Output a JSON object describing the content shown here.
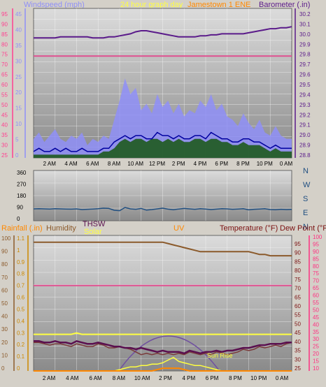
{
  "header": {
    "left_title": "Windspeed (mph)",
    "center_title": "24 hour graph day",
    "station_name": "Jamestown 1 ENE",
    "right_title": "Barometer (.in)"
  },
  "colors": {
    "background": "#d4d0c8",
    "plot_bg_light": "#dcdcdc",
    "plot_bg_dark": "#8a8a8a",
    "grid": "#ffffff",
    "wind_speed": "#8f8ff8",
    "wind_avg": "#0000a0",
    "wind_gust_area": "#1e5a1e",
    "barometer": "#5a1a8a",
    "temperature": "#e05090",
    "direction": "#1f4e80",
    "humidity": "#8b5a2b",
    "humidity_low": "#7a3a3a",
    "thsw": "#5a0f4f",
    "solar": "#ffff40",
    "uv": "#ff8800",
    "rain": "#ff8800",
    "solar_curve": "#7050a0",
    "wind_axis_text": "#ff4090",
    "baro_axis_text": "#5a1a8a",
    "humidity_axis_text": "#cc8800",
    "temp_axis_text": "#ff3080"
  },
  "chart_data": [
    {
      "id": "wind_barometer",
      "type": "line",
      "title": "24 hour graph day",
      "x_labels": [
        "2 AM",
        "4 AM",
        "6 AM",
        "8 AM",
        "10 AM",
        "12 PM",
        "2 PM",
        "4 PM",
        "6 PM",
        "8 PM",
        "10 PM",
        "0 AM"
      ],
      "left_axis": {
        "label": "Windspeed (mph)",
        "outer_ticks": [
          95,
          90,
          85,
          80,
          75,
          70,
          65,
          60,
          55,
          50,
          45,
          40,
          35,
          30,
          25
        ],
        "inner_ticks": [
          45,
          40,
          35,
          30,
          25,
          20,
          15,
          10,
          5,
          0
        ],
        "ylim": [
          0,
          47
        ]
      },
      "right_axis": {
        "label": "Barometer (.in)",
        "ticks": [
          30.2,
          30.1,
          30.0,
          29.9,
          29.8,
          29.7,
          29.6,
          29.5,
          29.4,
          29.3,
          29.2,
          29.1,
          29.0,
          28.9,
          28.8
        ],
        "ylim": [
          28.78,
          30.25
        ]
      },
      "series": [
        {
          "name": "Barometer",
          "axis": "right",
          "values": [
            29.96,
            29.96,
            29.96,
            29.96,
            29.96,
            29.97,
            29.97,
            29.97,
            29.97,
            29.97,
            29.97,
            29.96,
            29.96,
            29.96,
            29.97,
            29.97,
            29.98,
            29.99,
            30.0,
            30.02,
            30.03,
            30.03,
            30.02,
            30.01,
            30.0,
            29.99,
            29.98,
            29.97,
            29.97,
            29.97,
            29.97,
            29.98,
            29.98,
            29.99,
            29.99,
            30.0,
            30.0,
            30.0,
            30.0,
            30.0,
            30.01,
            30.02,
            30.03,
            30.04,
            30.05,
            30.05,
            30.06,
            30.06,
            30.07
          ]
        },
        {
          "name": "Temperature",
          "axis": "left",
          "values": [
            32,
            32,
            32,
            32,
            32,
            32,
            32,
            32,
            32,
            32,
            32,
            32,
            32,
            32,
            32,
            32,
            32,
            32,
            32,
            32,
            32,
            32,
            32,
            32,
            32,
            32,
            32,
            32,
            32,
            32,
            32,
            32,
            32,
            32,
            32,
            32,
            32,
            32,
            32,
            32,
            32,
            32,
            32,
            32,
            32,
            32,
            32,
            32,
            32
          ]
        },
        {
          "name": "Wind Speed",
          "values": [
            6,
            8,
            5,
            7,
            9,
            6,
            5,
            7,
            6,
            8,
            4,
            6,
            5,
            7,
            6,
            12,
            18,
            25,
            20,
            22,
            15,
            17,
            14,
            20,
            16,
            18,
            14,
            17,
            13,
            15,
            14,
            18,
            16,
            20,
            15,
            17,
            13,
            12,
            10,
            14,
            11,
            9,
            12,
            8,
            7,
            10,
            7,
            6,
            6
          ]
        },
        {
          "name": "Wind Avg",
          "values": [
            2,
            3,
            2,
            2,
            3,
            2,
            3,
            2,
            2,
            3,
            2,
            2,
            2,
            3,
            3,
            5,
            6,
            7,
            6,
            7,
            7,
            6,
            6,
            8,
            7,
            7,
            6,
            7,
            6,
            6,
            7,
            7,
            6,
            8,
            7,
            6,
            6,
            5,
            5,
            6,
            6,
            5,
            5,
            4,
            3,
            4,
            3,
            3,
            3
          ]
        },
        {
          "name": "Wind Gust",
          "values": [
            1,
            1,
            1,
            1,
            1,
            1,
            1,
            1,
            1,
            1,
            1,
            1,
            1,
            2,
            2,
            3,
            5,
            6,
            5,
            6,
            6,
            5,
            6,
            6,
            5,
            6,
            5,
            6,
            5,
            5,
            6,
            6,
            5,
            6,
            6,
            5,
            5,
            4,
            4,
            5,
            4,
            4,
            4,
            3,
            2,
            3,
            2,
            2,
            2
          ]
        }
      ]
    },
    {
      "id": "wind_direction",
      "type": "line",
      "y_ticks": [
        360,
        270,
        180,
        90,
        0
      ],
      "compass_labels": [
        "N",
        "W",
        "S",
        "E",
        "N"
      ],
      "ylim": [
        0,
        360
      ],
      "series": [
        {
          "name": "Wind Direction",
          "values": [
            85,
            86,
            85,
            84,
            86,
            85,
            84,
            83,
            85,
            80,
            82,
            84,
            86,
            90,
            88,
            75,
            72,
            95,
            85,
            82,
            88,
            76,
            80,
            85,
            90,
            83,
            79,
            84,
            88,
            85,
            82,
            86,
            84,
            80,
            83,
            86,
            85,
            82,
            84,
            86,
            78,
            82,
            84,
            86,
            80,
            79,
            82,
            80,
            81
          ]
        }
      ]
    },
    {
      "id": "thsw_humidity_temp",
      "type": "line",
      "x_labels": [
        "2 AM",
        "4 AM",
        "6 AM",
        "8 AM",
        "10 AM",
        "2 PM",
        "4 PM",
        "6 PM",
        "8 PM",
        "10 PM",
        "0 AM"
      ],
      "labels": {
        "rainfall": "Rainfall (.in)",
        "humidity": "Humidity",
        "thsw": "THSW",
        "solar": "Solar",
        "uv": "UV",
        "temperature": "Temperature (°F)",
        "dew_point": "Dew Point (°F)"
      },
      "solar_annotation": "Sun Rise",
      "rain_ticks": [
        100,
        90,
        80,
        70,
        60,
        50,
        40,
        30,
        20,
        10,
        0
      ],
      "humidity_ticks": [
        1.1,
        1.0,
        0.9,
        0.8,
        0.7,
        0.6,
        0.5,
        0.4,
        0.3,
        0.2,
        0.1,
        0
      ],
      "temp_ticks_outer": [
        100,
        95,
        90,
        85,
        80,
        75,
        70,
        65,
        60,
        55,
        50,
        45,
        40,
        35,
        30,
        25,
        20,
        15,
        10
      ],
      "temp_ticks_inner": [
        95,
        90,
        85,
        80,
        75,
        70,
        65,
        60,
        55,
        50,
        45,
        40,
        35,
        30,
        25
      ],
      "ylim": [
        0,
        100
      ],
      "series": [
        {
          "name": "Humidity",
          "values": [
            95,
            95,
            95,
            95,
            95,
            95,
            95,
            95,
            95,
            95,
            95,
            95,
            95,
            95,
            95,
            95,
            95,
            95,
            95,
            95,
            95,
            95,
            95,
            95,
            95,
            94,
            93,
            92,
            91,
            90,
            89,
            88,
            88,
            88,
            88,
            88,
            88,
            88,
            88,
            88,
            88,
            87,
            86,
            86,
            85,
            85,
            85,
            85,
            85
          ]
        },
        {
          "name": "Temperature",
          "values": [
            63,
            63,
            63,
            63,
            63,
            63,
            63,
            63,
            63,
            63,
            63,
            63,
            63,
            63,
            63,
            63,
            63,
            63,
            63,
            63,
            63,
            63,
            63,
            63,
            63,
            63,
            63,
            63,
            63,
            63,
            63,
            63,
            63,
            63,
            63,
            63,
            63,
            63,
            63,
            63,
            63,
            63,
            63,
            63,
            63,
            63,
            63,
            63,
            63
          ]
        },
        {
          "name": "Dew Point",
          "values": [
            27,
            27,
            27,
            27,
            27,
            27,
            27,
            27,
            28,
            27,
            27,
            27,
            27,
            27,
            27,
            27,
            27,
            27,
            27,
            27,
            27,
            27,
            27,
            27,
            27,
            27,
            27,
            27,
            27,
            27,
            27,
            27,
            27,
            27,
            27,
            27,
            27,
            27,
            27,
            27,
            27,
            27,
            27,
            27,
            27,
            27,
            27,
            27,
            27
          ]
        },
        {
          "name": "Rainfall",
          "values": [
            21,
            21,
            20,
            19,
            20,
            20,
            19,
            18,
            20,
            19,
            18,
            18,
            20,
            19,
            17,
            17,
            18,
            17,
            16,
            14,
            12,
            13,
            12,
            13,
            12,
            13,
            12,
            13,
            12,
            14,
            13,
            12,
            13,
            12,
            14,
            13,
            12,
            13,
            14,
            16,
            15,
            16,
            18,
            17,
            18,
            19,
            18,
            20,
            21
          ]
        },
        {
          "name": "THSW",
          "values": [
            22,
            22,
            21,
            21,
            22,
            21,
            21,
            20,
            22,
            21,
            20,
            20,
            21,
            20,
            19,
            18,
            18,
            17,
            17,
            16,
            17,
            16,
            15,
            14,
            15,
            14,
            14,
            14,
            13,
            15,
            14,
            13,
            14,
            14,
            15,
            14,
            15,
            15,
            16,
            17,
            17,
            18,
            19,
            19,
            20,
            20,
            20,
            21,
            21
          ]
        },
        {
          "name": "Solar",
          "values": [
            0,
            0,
            0,
            0,
            0,
            0,
            0,
            0,
            0,
            0,
            0,
            0,
            0,
            0,
            0,
            0,
            1,
            2,
            3,
            3,
            4,
            4,
            5,
            5,
            6,
            8,
            10,
            7,
            6,
            5,
            4,
            4,
            3,
            2,
            1,
            0,
            0,
            0,
            0,
            0,
            0,
            0,
            0,
            0,
            0,
            0,
            0,
            0,
            0
          ]
        },
        {
          "name": "UV",
          "values": [
            0,
            0,
            0,
            0,
            0,
            0,
            0,
            0,
            0,
            0,
            0,
            0,
            0,
            0,
            0,
            0,
            0,
            0,
            0,
            0,
            0,
            0,
            0,
            1,
            2,
            2,
            2,
            2,
            1,
            0,
            0,
            0,
            0,
            0,
            0,
            0,
            0,
            0,
            0,
            0,
            0,
            0,
            0,
            0,
            0,
            0,
            0,
            0,
            0
          ]
        }
      ]
    }
  ]
}
